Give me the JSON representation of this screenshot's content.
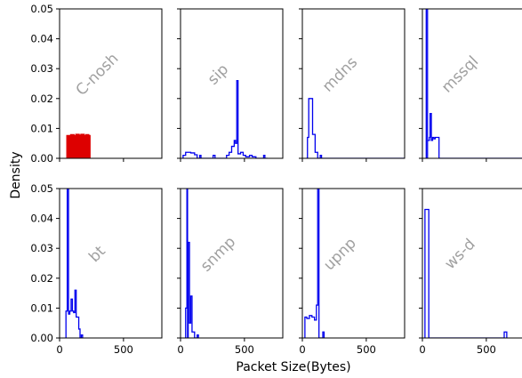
{
  "chart_data": {
    "type": "histogram-grid",
    "rows": 2,
    "cols": 4,
    "xlabel": "Packet Size(Bytes)",
    "ylabel": "Density",
    "xlim": [
      0,
      800
    ],
    "ylim": [
      0,
      0.05
    ],
    "x_ticks": [
      0,
      500
    ],
    "x_tick_labels": [
      "0",
      "500"
    ],
    "y_ticks": [
      0.0,
      0.01,
      0.02,
      0.03,
      0.04,
      0.05
    ],
    "y_tick_labels": [
      "0.00",
      "0.01",
      "0.02",
      "0.03",
      "0.04",
      "0.05"
    ],
    "panels": [
      {
        "title": "C-nosh",
        "color": "#dd0000",
        "fill": true,
        "steps": [
          [
            60,
            0
          ],
          [
            60,
            0.0075
          ],
          [
            90,
            0.0078
          ],
          [
            110,
            0.0074
          ],
          [
            130,
            0.0079
          ],
          [
            150,
            0.0076
          ],
          [
            170,
            0.0079
          ],
          [
            190,
            0.0075
          ],
          [
            210,
            0.0078
          ],
          [
            225,
            0.0075
          ],
          [
            235,
            0.0075
          ],
          [
            235,
            0
          ]
        ]
      },
      {
        "title": "sip",
        "color": "#0000ee",
        "fill": false,
        "steps": [
          [
            20,
            0
          ],
          [
            20,
            0.001
          ],
          [
            40,
            0.002
          ],
          [
            80,
            0.0018
          ],
          [
            110,
            0.0012
          ],
          [
            130,
            0.0
          ],
          [
            150,
            0.001
          ],
          [
            160,
            0.0
          ],
          [
            250,
            0.0
          ],
          [
            255,
            0.001
          ],
          [
            270,
            0.0
          ],
          [
            350,
            0.0
          ],
          [
            360,
            0.001
          ],
          [
            380,
            0.002
          ],
          [
            400,
            0.004
          ],
          [
            420,
            0.006
          ],
          [
            430,
            0.005
          ],
          [
            440,
            0.026
          ],
          [
            450,
            0.0015
          ],
          [
            470,
            0.002
          ],
          [
            490,
            0.001
          ],
          [
            510,
            0.0005
          ],
          [
            540,
            0.001
          ],
          [
            560,
            0.0005
          ],
          [
            590,
            0.0
          ],
          [
            640,
            0.0
          ],
          [
            650,
            0.001
          ],
          [
            660,
            0.0
          ],
          [
            680,
            0.0
          ]
        ]
      },
      {
        "title": "mdns",
        "color": "#0000ee",
        "fill": false,
        "steps": [
          [
            30,
            0
          ],
          [
            30,
            0.0
          ],
          [
            40,
            0.007
          ],
          [
            50,
            0.02
          ],
          [
            80,
            0.008
          ],
          [
            100,
            0.002
          ],
          [
            120,
            0.0
          ],
          [
            140,
            0.001
          ],
          [
            150,
            0.0
          ],
          [
            800,
            0.0
          ]
        ]
      },
      {
        "title": "mssql",
        "color": "#0000ee",
        "fill": false,
        "steps": [
          [
            30,
            0
          ],
          [
            30,
            0.05
          ],
          [
            40,
            0.0
          ],
          [
            40,
            0.006
          ],
          [
            55,
            0.007
          ],
          [
            60,
            0.015
          ],
          [
            70,
            0.006
          ],
          [
            80,
            0.007
          ],
          [
            90,
            0.0065
          ],
          [
            100,
            0.007
          ],
          [
            130,
            0.0
          ],
          [
            800,
            0.0
          ]
        ]
      },
      {
        "title": "bt",
        "color": "#0000ee",
        "fill": false,
        "steps": [
          [
            50,
            0
          ],
          [
            50,
            0.009
          ],
          [
            60,
            0.05
          ],
          [
            70,
            0.008
          ],
          [
            80,
            0.009
          ],
          [
            90,
            0.013
          ],
          [
            100,
            0.009
          ],
          [
            110,
            0.0085
          ],
          [
            120,
            0.016
          ],
          [
            130,
            0.007
          ],
          [
            150,
            0.003
          ],
          [
            160,
            0.0
          ],
          [
            170,
            0.001
          ],
          [
            180,
            0.0
          ]
        ]
      },
      {
        "title": "snmp",
        "color": "#0000ee",
        "fill": false,
        "steps": [
          [
            40,
            0
          ],
          [
            40,
            0.01
          ],
          [
            50,
            0.05
          ],
          [
            55,
            0.0
          ],
          [
            60,
            0.032
          ],
          [
            70,
            0.005
          ],
          [
            80,
            0.014
          ],
          [
            90,
            0.002
          ],
          [
            110,
            0.0
          ],
          [
            130,
            0.001
          ],
          [
            140,
            0.0
          ]
        ]
      },
      {
        "title": "upnp",
        "color": "#0000ee",
        "fill": false,
        "steps": [
          [
            20,
            0
          ],
          [
            20,
            0.007
          ],
          [
            35,
            0.0065
          ],
          [
            55,
            0.0075
          ],
          [
            75,
            0.007
          ],
          [
            95,
            0.006
          ],
          [
            110,
            0.011
          ],
          [
            120,
            0.05
          ],
          [
            130,
            0.0
          ],
          [
            155,
            0.0
          ],
          [
            160,
            0.002
          ],
          [
            170,
            0.0
          ]
        ]
      },
      {
        "title": "ws-d",
        "color": "#0000ee",
        "fill": false,
        "steps": [
          [
            20,
            0
          ],
          [
            20,
            0.043
          ],
          [
            50,
            0.0
          ],
          [
            640,
            0.0
          ],
          [
            640,
            0.002
          ],
          [
            660,
            0.0
          ]
        ]
      }
    ]
  }
}
